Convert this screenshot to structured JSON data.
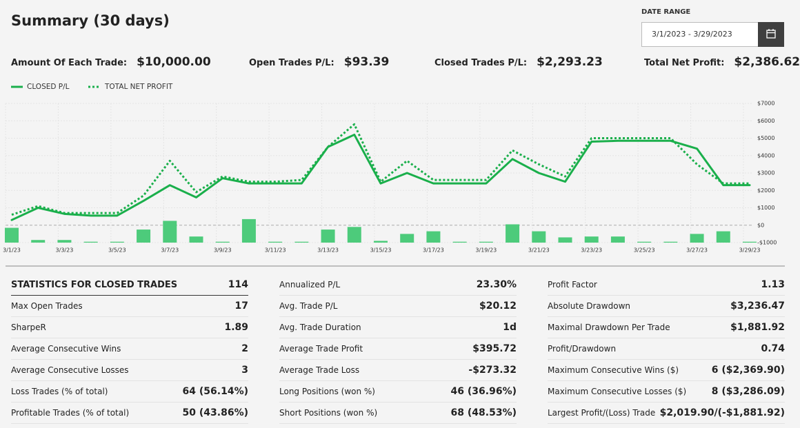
{
  "header": {
    "title": "Summary (30 days)",
    "date_range_label": "DATE RANGE",
    "date_range": "3/1/2023 - 3/29/2023"
  },
  "summary": [
    {
      "label": "Amount Of Each Trade:",
      "value": "$10,000.00"
    },
    {
      "label": "Open Trades P/L:",
      "value": "$93.39"
    },
    {
      "label": "Closed Trades P/L:",
      "value": "$2,293.23"
    },
    {
      "label": "Total Net Profit:",
      "value": "$2,386.62"
    }
  ],
  "chart_data": {
    "type": "line",
    "categories": [
      "3/1/23",
      null,
      "3/3/23",
      null,
      "3/5/23",
      null,
      "3/7/23",
      null,
      "3/9/23",
      null,
      "3/11/23",
      null,
      "3/13/23",
      null,
      "3/15/23",
      null,
      "3/17/23",
      null,
      "3/19/23",
      null,
      "3/21/23",
      null,
      "3/23/23",
      null,
      "3/25/23",
      null,
      "3/27/23",
      null,
      "3/29/23"
    ],
    "series": [
      {
        "name": "CLOSED P/L",
        "color": "#1aaf4b",
        "style": "solid",
        "values": [
          300,
          1000,
          650,
          550,
          550,
          1400,
          2300,
          1600,
          2700,
          2400,
          2400,
          2400,
          4500,
          5200,
          2400,
          3000,
          2400,
          2400,
          2400,
          3800,
          3000,
          2500,
          4800,
          4850,
          4850,
          4850,
          4400,
          2300,
          2300
        ]
      },
      {
        "name": "TOTAL NET PROFIT",
        "color": "#1aaf4b",
        "style": "dotted",
        "values": [
          600,
          1100,
          700,
          700,
          700,
          1700,
          3700,
          1900,
          2800,
          2500,
          2500,
          2600,
          4500,
          5800,
          2500,
          3700,
          2600,
          2600,
          2600,
          4300,
          3500,
          2800,
          5000,
          5000,
          5000,
          5000,
          3500,
          2400,
          2400
        ]
      },
      {
        "type": "bar",
        "color": "#4dcb7b",
        "values": [
          -150,
          -850,
          -850,
          -950,
          -950,
          -250,
          250,
          -650,
          -950,
          350,
          -950,
          -950,
          -250,
          -100,
          -900,
          -500,
          -350,
          -950,
          -950,
          50,
          -350,
          -700,
          -650,
          -650,
          -950,
          -950,
          -500,
          -350,
          -950
        ]
      }
    ],
    "ylim": [
      -1000,
      7000
    ],
    "yticks": [
      {
        "value": -1000,
        "label": "-$1000"
      },
      {
        "value": 0,
        "label": "$0"
      },
      {
        "value": 1000,
        "label": "$1000"
      },
      {
        "value": 2000,
        "label": "$2000"
      },
      {
        "value": 3000,
        "label": "$3000"
      },
      {
        "value": 4000,
        "label": "$4000"
      },
      {
        "value": 5000,
        "label": "$5000"
      },
      {
        "value": 6000,
        "label": "$6000"
      },
      {
        "value": 7000,
        "label": "$7000"
      }
    ],
    "grid": true
  },
  "stats": {
    "columns": [
      {
        "header": [
          "STATISTICS FOR CLOSED TRADES",
          "114"
        ],
        "rows": [
          [
            "Max Open Trades",
            "17"
          ],
          [
            "SharpeR",
            "1.89"
          ],
          [
            "Average Consecutive Wins",
            "2"
          ],
          [
            "Average Consecutive Losses",
            "3"
          ],
          [
            "Loss Trades (% of total)",
            "64 (56.14%)"
          ],
          [
            "Profitable Trades (% of total)",
            "50 (43.86%)"
          ]
        ]
      },
      {
        "rows": [
          [
            "Annualized P/L",
            "23.30%"
          ],
          [
            "Avg. Trade P/L",
            "$20.12"
          ],
          [
            "Avg. Trade Duration",
            "1d"
          ],
          [
            "Average Trade Profit",
            "$395.72"
          ],
          [
            "Average Trade Loss",
            "-$273.32"
          ],
          [
            "Long Positions (won %)",
            "46 (36.96%)"
          ],
          [
            "Short Positions (won %)",
            "68 (48.53%)"
          ]
        ]
      },
      {
        "rows": [
          [
            "Profit Factor",
            "1.13"
          ],
          [
            "Absolute Drawdown",
            "$3,236.47"
          ],
          [
            "Maximal Drawdown Per Trade",
            "$1,881.92"
          ],
          [
            "Profit/Drawdown",
            "0.74"
          ],
          [
            "Maximum Consecutive Wins ($)",
            "6 ($2,369.90)"
          ],
          [
            "Maximum Consecutive Losses ($)",
            "8 ($3,286.09)"
          ],
          [
            "Largest Profit/(Loss) Trade",
            "$2,019.90/(-$1,881.92)"
          ]
        ]
      }
    ]
  }
}
